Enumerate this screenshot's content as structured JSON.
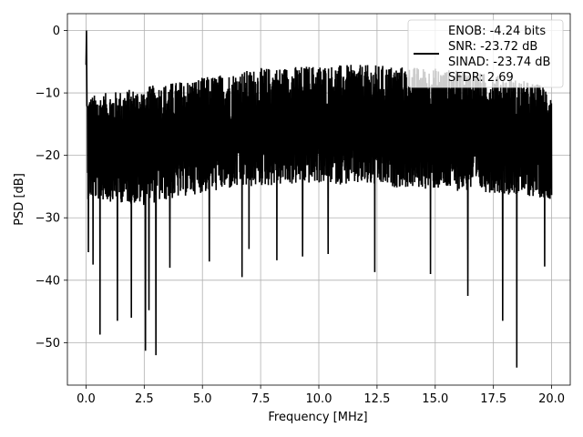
{
  "chart_data": {
    "type": "line",
    "title": "",
    "xlabel": "Frequency [MHz]",
    "ylabel": "PSD [dB]",
    "xlim": [
      -0.8,
      20.8
    ],
    "ylim": [
      -56.8,
      2.7
    ],
    "grid": true,
    "legend_position": "top-right",
    "line_color": "#000000",
    "x_ticks": [
      0.0,
      2.5,
      5.0,
      7.5,
      10.0,
      12.5,
      15.0,
      17.5,
      20.0
    ],
    "x_tick_labels": [
      "0.0",
      "2.5",
      "5.0",
      "7.5",
      "10.0",
      "12.5",
      "15.0",
      "17.5",
      "20.0"
    ],
    "y_ticks": [
      0,
      -10,
      -20,
      -30,
      -40,
      -50
    ],
    "y_tick_labels": [
      "0",
      "−10",
      "−20",
      "−30",
      "−40",
      "−50"
    ],
    "series": [
      {
        "legend_lines": [
          "ENOB: -4.24 bits",
          "SNR: -23.72 dB",
          "SINAD: -23.74 dB",
          "SFDR: 2.69"
        ],
        "x_range": [
          0.0,
          20.0
        ],
        "peak": {
          "x": 0.02,
          "y": 0.0
        },
        "noise_floor_trend": [
          {
            "x": 0.0,
            "top": -10.5,
            "bottom": -27
          },
          {
            "x": 2.5,
            "top": -9,
            "bottom": -28
          },
          {
            "x": 5.0,
            "top": -7.5,
            "bottom": -26
          },
          {
            "x": 7.5,
            "top": -6,
            "bottom": -25
          },
          {
            "x": 10.0,
            "top": -5.5,
            "bottom": -24.5
          },
          {
            "x": 12.5,
            "top": -5.5,
            "bottom": -25
          },
          {
            "x": 15.0,
            "top": -6,
            "bottom": -25.5
          },
          {
            "x": 17.5,
            "top": -7,
            "bottom": -26
          },
          {
            "x": 20.0,
            "top": -9,
            "bottom": -27
          }
        ],
        "dips": [
          {
            "x": 0.1,
            "y": -35.5
          },
          {
            "x": 0.3,
            "y": -37.5
          },
          {
            "x": 0.6,
            "y": -48.7
          },
          {
            "x": 1.35,
            "y": -46.5
          },
          {
            "x": 1.95,
            "y": -46.0
          },
          {
            "x": 2.55,
            "y": -51.3
          },
          {
            "x": 2.7,
            "y": -44.8
          },
          {
            "x": 3.0,
            "y": -52.0
          },
          {
            "x": 3.6,
            "y": -38.0
          },
          {
            "x": 5.3,
            "y": -37.0
          },
          {
            "x": 6.7,
            "y": -39.5
          },
          {
            "x": 7.0,
            "y": -35.0
          },
          {
            "x": 8.2,
            "y": -36.8
          },
          {
            "x": 9.3,
            "y": -36.2
          },
          {
            "x": 10.4,
            "y": -35.8
          },
          {
            "x": 12.4,
            "y": -38.7
          },
          {
            "x": 14.8,
            "y": -39.0
          },
          {
            "x": 16.4,
            "y": -42.5
          },
          {
            "x": 17.9,
            "y": -46.5
          },
          {
            "x": 18.5,
            "y": -54.0
          },
          {
            "x": 19.7,
            "y": -37.8
          }
        ]
      }
    ]
  }
}
